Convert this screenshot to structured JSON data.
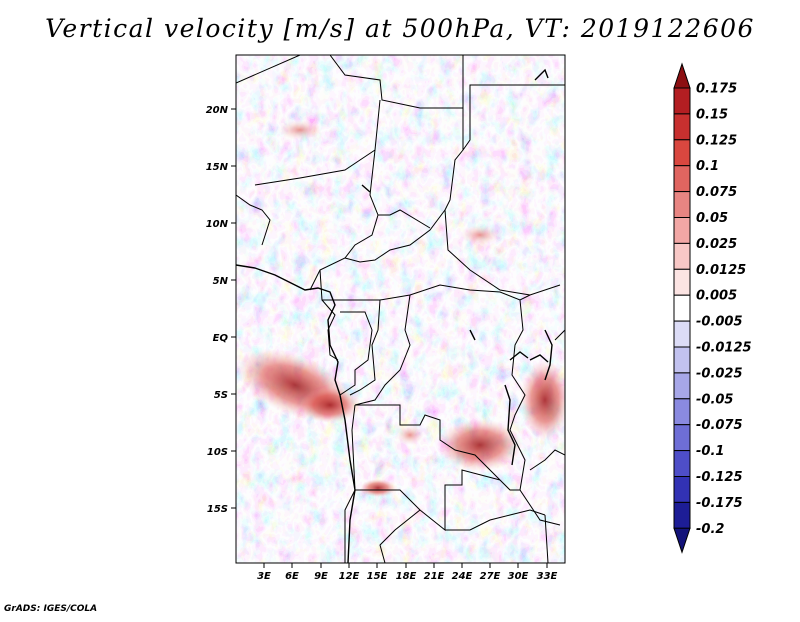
{
  "title": "Vertical velocity [m/s] at 500hPa, VT: 2019122606",
  "credit": "GrADS: IGES/COLA",
  "map": {
    "variable": "Vertical velocity",
    "units": "m/s",
    "level": "500hPa",
    "valid_time": "2019122606",
    "lat_labels": [
      "20N",
      "15N",
      "10N",
      "5N",
      "EQ",
      "5S",
      "10S",
      "15S"
    ],
    "lon_labels": [
      "3E",
      "6E",
      "9E",
      "12E",
      "15E",
      "18E",
      "21E",
      "24E",
      "27E",
      "30E",
      "33E"
    ]
  },
  "colorbar": {
    "labels": [
      "0.175",
      "0.15",
      "0.125",
      "0.1",
      "0.075",
      "0.05",
      "0.025",
      "0.0125",
      "0.005",
      "-0.005",
      "-0.0125",
      "-0.025",
      "-0.05",
      "-0.075",
      "-0.1",
      "-0.125",
      "-0.175",
      "-0.2"
    ],
    "colors": [
      "#8c0f12",
      "#b31e22",
      "#c8302f",
      "#d9473f",
      "#e06560",
      "#e88582",
      "#f2a7a5",
      "#f8c8c6",
      "#fce4e3",
      "#ffffff",
      "#dcdcf6",
      "#c2c2ef",
      "#a7a7e8",
      "#8a8ae0",
      "#6e6ed6",
      "#4e4ec8",
      "#3232b4",
      "#1d1d96",
      "#13137a"
    ]
  }
}
